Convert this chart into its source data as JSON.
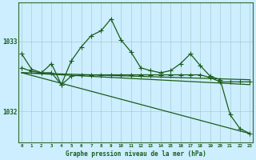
{
  "title": "Graphe pression niveau de la mer (hPa)",
  "background_color": "#cceeff",
  "plot_bg_color": "#cceeff",
  "grid_color": "#aacccc",
  "line_color": "#1a5c1a",
  "border_color": "#336633",
  "x_ticks": [
    0,
    1,
    2,
    3,
    4,
    5,
    6,
    7,
    8,
    9,
    10,
    11,
    12,
    13,
    14,
    15,
    16,
    17,
    18,
    19,
    20,
    21,
    22,
    23
  ],
  "y_ticks": [
    1032,
    1033
  ],
  "ylim": [
    1031.55,
    1033.55
  ],
  "xlim": [
    -0.3,
    23.3
  ],
  "series": [
    {
      "x": [
        0,
        1,
        2,
        3,
        4,
        5,
        6,
        7,
        8,
        9,
        10,
        11,
        12,
        13,
        14,
        15,
        16,
        17,
        18,
        19,
        20,
        21,
        22,
        23
      ],
      "y": [
        1032.82,
        1032.6,
        1032.55,
        1032.68,
        1032.38,
        1032.72,
        1032.92,
        1033.08,
        1033.15,
        1033.32,
        1033.02,
        1032.85,
        1032.62,
        1032.58,
        1032.55,
        1032.58,
        1032.68,
        1032.82,
        1032.65,
        1032.5,
        1032.45,
        1031.95,
        1031.75,
        1031.68
      ],
      "marker": "+",
      "markersize": 4,
      "linewidth": 0.9
    },
    {
      "x": [
        0,
        1,
        2,
        3,
        4,
        5,
        6,
        7,
        8,
        9,
        10,
        11,
        12,
        13,
        14,
        15,
        16,
        17,
        18,
        19,
        20,
        21,
        22,
        23
      ],
      "y": [
        1032.62,
        1032.57,
        1032.55,
        1032.55,
        1032.38,
        1032.5,
        1032.52,
        1032.52,
        1032.52,
        1032.52,
        1032.52,
        1032.52,
        1032.52,
        1032.52,
        1032.52,
        1032.52,
        1032.52,
        1032.52,
        1032.52,
        1032.48,
        1032.42,
        1032.42,
        1032.42,
        1032.42
      ],
      "marker": "+",
      "markersize": 4,
      "linewidth": 0.9
    },
    {
      "x": [
        0,
        23
      ],
      "y": [
        1032.55,
        1032.45
      ],
      "marker": null,
      "markersize": 0,
      "linewidth": 0.9
    },
    {
      "x": [
        0,
        23
      ],
      "y": [
        1032.55,
        1032.38
      ],
      "marker": null,
      "markersize": 0,
      "linewidth": 0.9
    },
    {
      "x": [
        0,
        23
      ],
      "y": [
        1032.55,
        1031.68
      ],
      "marker": null,
      "markersize": 0,
      "linewidth": 0.9
    }
  ]
}
